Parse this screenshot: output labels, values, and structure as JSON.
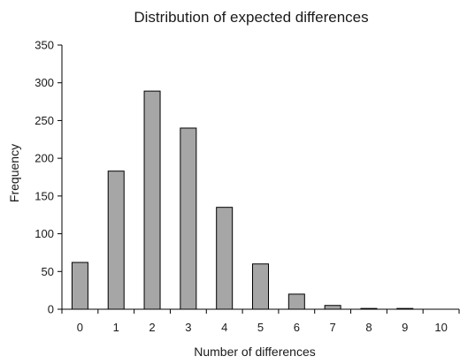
{
  "chart_data": {
    "type": "bar",
    "title": "Distribution of expected differences",
    "xlabel": "Number of differences",
    "ylabel": "Frequency",
    "categories": [
      "0",
      "1",
      "2",
      "3",
      "4",
      "5",
      "6",
      "7",
      "8",
      "9",
      "10"
    ],
    "values": [
      62,
      183,
      289,
      240,
      135,
      60,
      20,
      5,
      1,
      1,
      0
    ],
    "ylim": [
      0,
      350
    ],
    "yticks": [
      "0",
      "50",
      "100",
      "150",
      "200",
      "250",
      "300",
      "350"
    ],
    "grid": false,
    "legend": "none",
    "colors": {
      "bar_fill": "#a6a6a6",
      "bar_stroke": "#000000"
    }
  }
}
